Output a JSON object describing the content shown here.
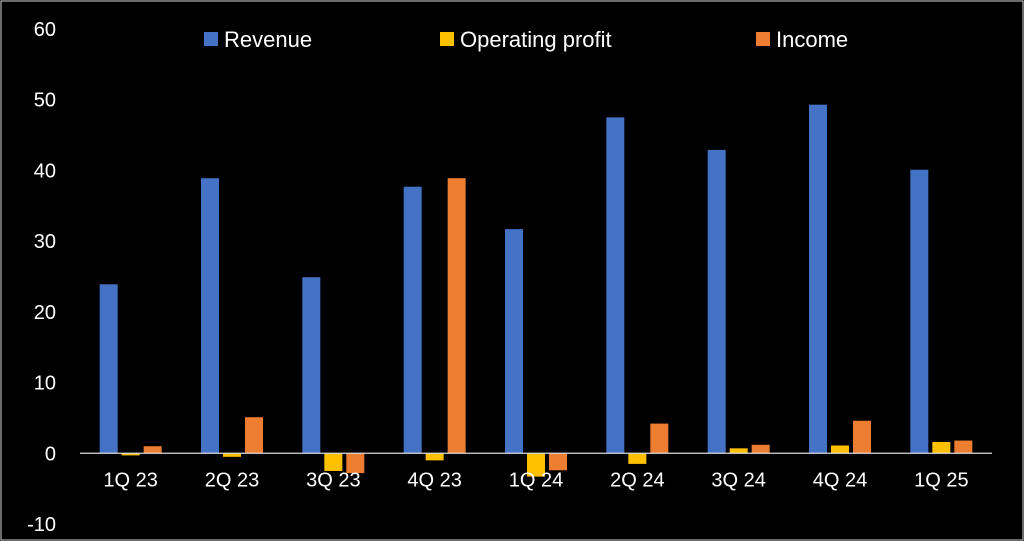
{
  "chart_data": {
    "type": "bar",
    "categories": [
      "1Q 23",
      "2Q 23",
      "3Q 23",
      "4Q 23",
      "1Q 24",
      "2Q 24",
      "3Q 24",
      "4Q 24",
      "1Q 25"
    ],
    "series": [
      {
        "name": "Revenue",
        "color": "#4472C4",
        "values": [
          23.9,
          38.9,
          24.9,
          37.7,
          31.7,
          47.5,
          42.9,
          49.3,
          40.1
        ]
      },
      {
        "name": "Operating profit",
        "color": "#FFC000",
        "values": [
          -0.3,
          -0.5,
          -2.5,
          -1.0,
          -3.3,
          -1.5,
          0.7,
          1.1,
          1.6
        ]
      },
      {
        "name": "Income",
        "color": "#ED7D31",
        "values": [
          1.0,
          5.1,
          -2.8,
          38.9,
          -2.4,
          4.2,
          1.2,
          4.6,
          1.8
        ]
      }
    ],
    "yticks": [
      -10,
      0,
      10,
      20,
      30,
      40,
      50,
      60
    ],
    "ylim": [
      -10,
      60
    ],
    "legend_position": "top",
    "grid": false,
    "background": "#000000"
  }
}
